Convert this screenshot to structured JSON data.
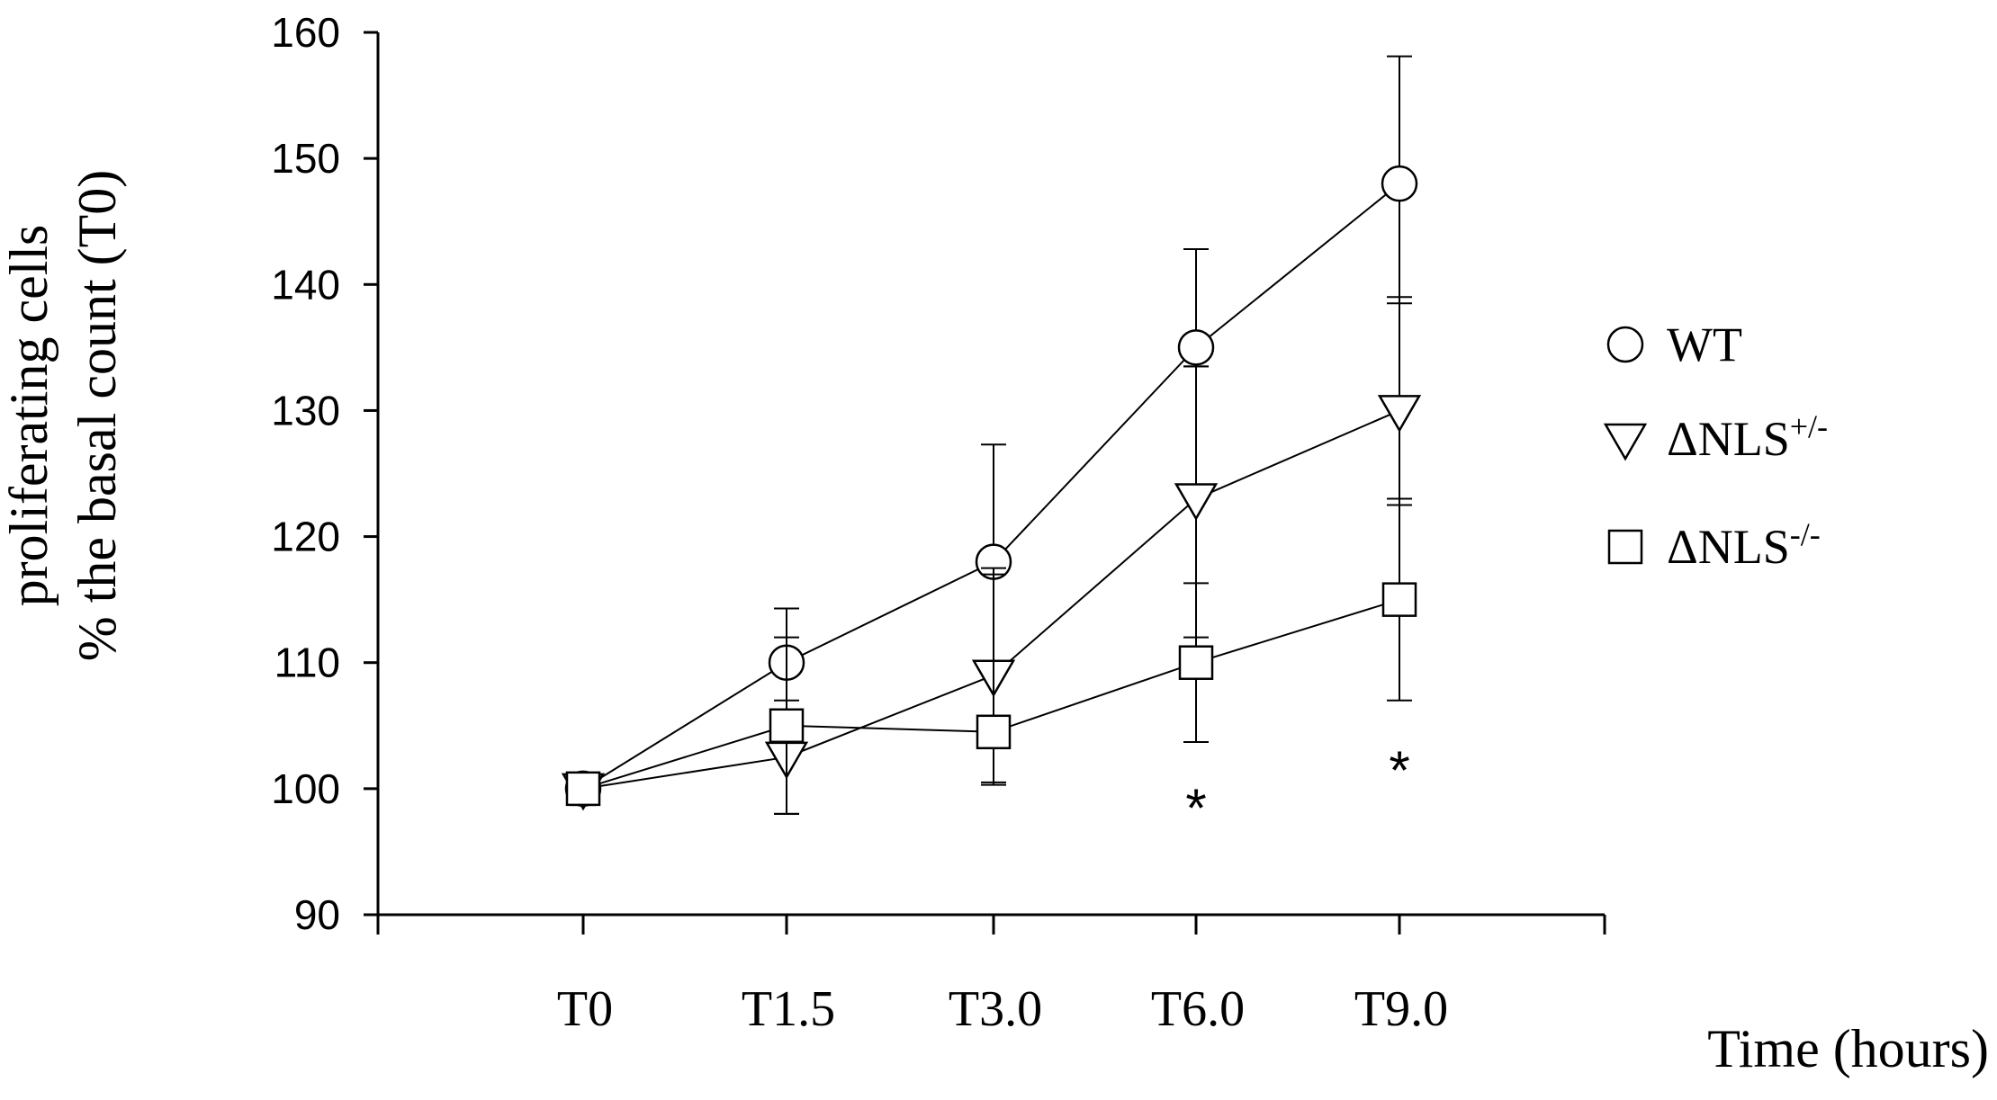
{
  "chart_data": {
    "type": "line",
    "categories": [
      "T0",
      "T1.5",
      "T3.0",
      "T6.0",
      "T9.0"
    ],
    "xlabel": "Time (hours)",
    "ylabel_line1": "proliferating cells",
    "ylabel_line2": "% the basal count (T0)",
    "ylim": [
      90,
      160
    ],
    "yticks": [
      90,
      100,
      110,
      120,
      130,
      140,
      150,
      160
    ],
    "grid": false,
    "legend_position": "right",
    "series": [
      {
        "name": "WT",
        "marker": "circle",
        "values": [
          100,
          110,
          118,
          135,
          148
        ],
        "err_upper": [
          101,
          114.3,
          127.3,
          142.8,
          158.1
        ],
        "err_lower": [
          100,
          105.5,
          117.5,
          133.5,
          138.5
        ]
      },
      {
        "name": "ΔNLS",
        "name_sup": "+/-",
        "marker": "triangle-down",
        "values": [
          100,
          102.5,
          109,
          123,
          130
        ],
        "err_upper": [
          101,
          107,
          117.5,
          133.5,
          139
        ],
        "err_lower": [
          98.7,
          98,
          100.3,
          112,
          122.5
        ]
      },
      {
        "name": "ΔNLS",
        "name_sup": "-/-",
        "marker": "square",
        "values": [
          100,
          105,
          104.5,
          110,
          115
        ],
        "err_upper": [
          101,
          112,
          117,
          116.3,
          123
        ],
        "err_lower": [
          99,
          98,
          100.5,
          103.7,
          107
        ]
      }
    ],
    "annotations": [
      {
        "text": "*",
        "category": "T6.0",
        "y": 100
      },
      {
        "text": "*",
        "category": "T9.0",
        "y": 103
      }
    ]
  }
}
